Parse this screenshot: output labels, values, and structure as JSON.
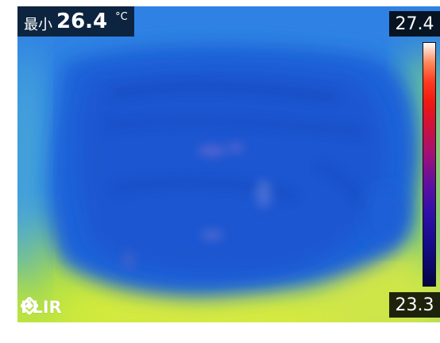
{
  "readout": {
    "min_label": "最小",
    "min_value": "26.4",
    "unit": "°C"
  },
  "scale": {
    "max": "27.4",
    "min": "23.3",
    "colors": [
      "#ffffff",
      "#ff8a5a",
      "#ff3a20",
      "#d0103a",
      "#a01078",
      "#6010a0",
      "#3010a8",
      "#0c0868",
      "#050440"
    ]
  },
  "logo": {
    "text": "FLIR",
    "icon": "flir-logo-icon"
  },
  "image": {
    "palette": {
      "background": "#2f7fe0",
      "cool": "#1c5fd6",
      "warm_edge": "#aee03a",
      "hot_edge": "#f2e64a"
    }
  }
}
